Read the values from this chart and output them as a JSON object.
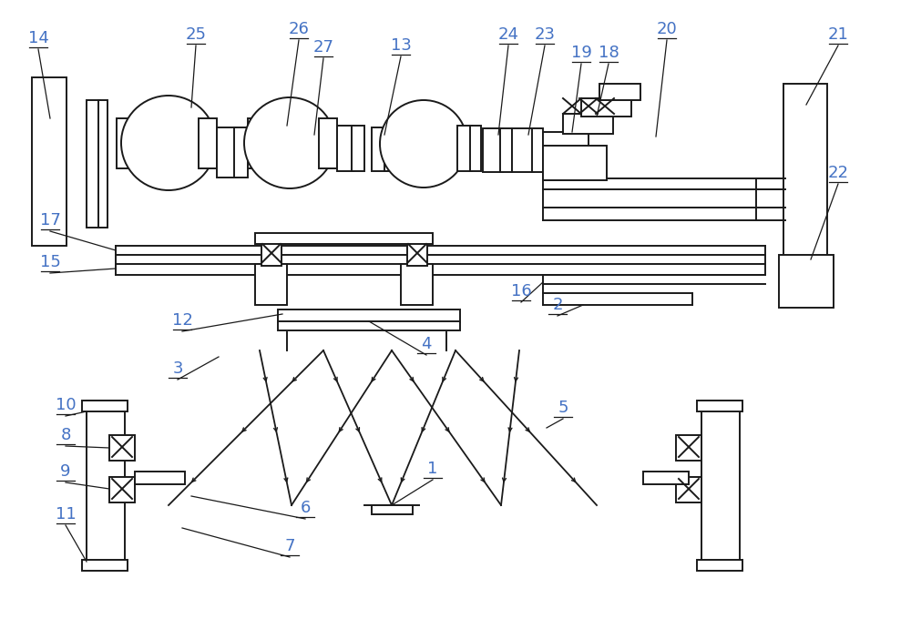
{
  "bg_color": "#ffffff",
  "line_color": "#1a1a1a",
  "label_color": "#4472c4",
  "label_fs": 13,
  "figsize": [
    10.0,
    6.91
  ],
  "dpi": 100
}
